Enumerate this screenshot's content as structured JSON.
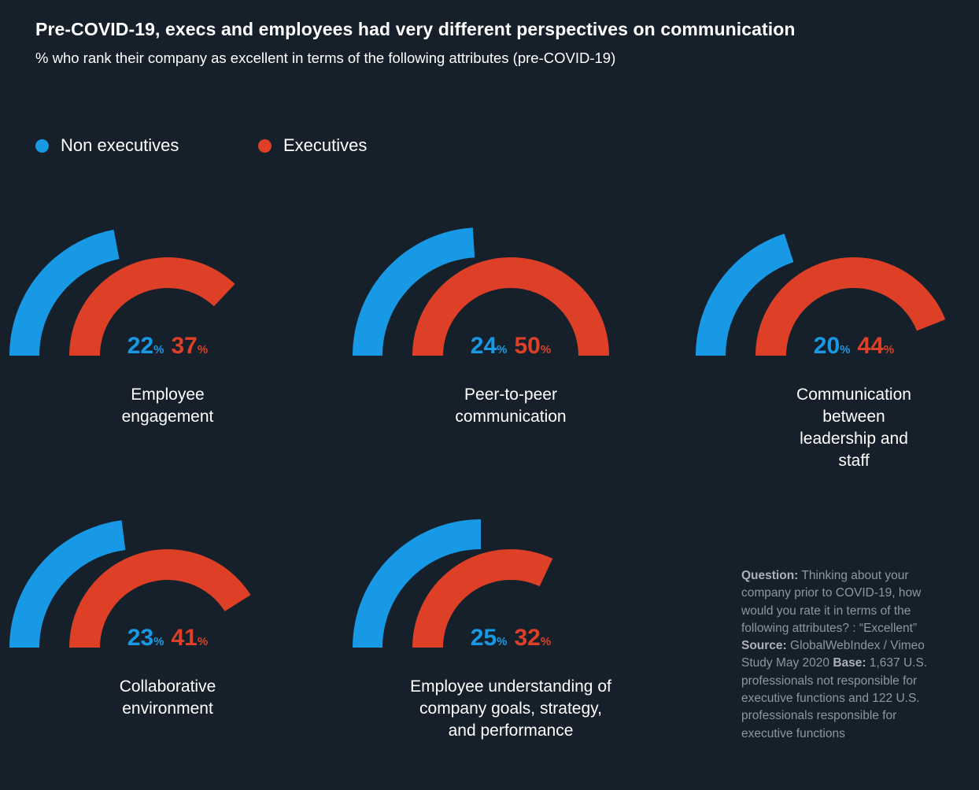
{
  "title": "Pre-COVID-19, execs and employees had very different perspectives on communication",
  "subtitle": "% who rank their company as excellent in terms of the following attributes (pre-COVID-19)",
  "colors": {
    "background": "#16202a",
    "non_executives": "#1799e6",
    "executives": "#dd4027"
  },
  "chart_data": {
    "type": "gauge",
    "unit": "%",
    "series": [
      {
        "name": "Non executives",
        "values": [
          22,
          24,
          20,
          23,
          25
        ]
      },
      {
        "name": "Executives",
        "values": [
          37,
          50,
          44,
          41,
          32
        ]
      }
    ],
    "categories": [
      "Employee\nengagement",
      "Peer-to-peer\ncommunication",
      "Communication between\nleadership and staff",
      "Collaborative\nenvironment",
      "Employee understanding of\ncompany goals, strategy,\nand performance"
    ],
    "value_max": 100,
    "legend_position": "top-left"
  },
  "note": {
    "question_label": "Question:",
    "question_text": " Thinking about your company prior to COVID-19, how would you rate it in terms of the following attributes? : “Excellent” ",
    "source_label": "Source:",
    "source_text": " GlobalWebIndex / Vimeo Study May 2020 ",
    "base_label": "Base:",
    "base_text": " 1,637 U.S. professionals not responsible for executive functions and 122 U.S. professionals responsible for executive functions"
  }
}
